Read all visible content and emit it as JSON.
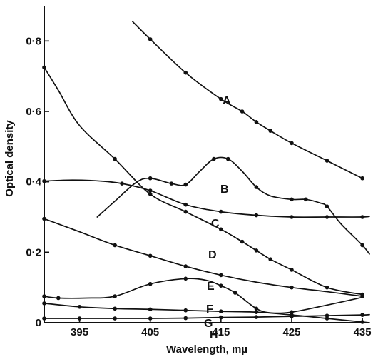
{
  "chart_data": {
    "type": "line",
    "title": "",
    "xlabel": "Wavelength, mµ",
    "ylabel": "Optical density",
    "xlim": [
      390,
      436
    ],
    "ylim": [
      0,
      0.9
    ],
    "x_ticks": [
      395,
      405,
      415,
      425,
      435
    ],
    "x_tick_labels": [
      "395",
      "405",
      "415",
      "425",
      "435"
    ],
    "y_ticks": [
      0,
      0.2,
      0.4,
      0.6,
      0.8
    ],
    "y_tick_labels": [
      "0",
      "0·2",
      "0·4",
      "0·6",
      "0·8"
    ],
    "grid": false,
    "legend": "labels placed on curves",
    "series": [
      {
        "name": "A",
        "x": [
          405,
          410,
          415,
          418,
          420,
          422,
          425,
          430,
          435
        ],
        "y": [
          0.805,
          0.71,
          0.635,
          0.6,
          0.57,
          0.545,
          0.51,
          0.46,
          0.41
        ],
        "line_x": [
          402.5,
          405,
          410,
          415,
          418,
          420,
          422,
          425,
          430,
          435
        ],
        "line_y": [
          0.855,
          0.805,
          0.71,
          0.635,
          0.6,
          0.57,
          0.545,
          0.51,
          0.46,
          0.41
        ]
      },
      {
        "name": "B",
        "x": [
          405,
          408,
          410,
          414,
          416,
          420,
          425,
          427,
          430,
          435
        ],
        "y": [
          0.41,
          0.395,
          0.392,
          0.465,
          0.465,
          0.385,
          0.35,
          0.35,
          0.33,
          0.22
        ],
        "line_x": [
          397.5,
          400,
          403,
          405,
          408,
          410,
          412,
          414,
          416,
          418,
          420,
          422,
          425,
          427,
          429,
          430,
          432,
          435,
          436
        ],
        "line_y": [
          0.3,
          0.345,
          0.398,
          0.41,
          0.395,
          0.392,
          0.43,
          0.465,
          0.465,
          0.43,
          0.385,
          0.36,
          0.35,
          0.35,
          0.34,
          0.33,
          0.28,
          0.22,
          0.195
        ]
      },
      {
        "name": "C",
        "x": [
          390,
          401,
          405,
          410,
          415,
          420,
          425,
          430,
          435
        ],
        "y": [
          0.402,
          0.395,
          0.375,
          0.335,
          0.315,
          0.305,
          0.3,
          0.3,
          0.3
        ],
        "line_x": [
          390,
          394,
          398,
          401,
          405,
          410,
          415,
          420,
          425,
          430,
          435,
          436
        ],
        "line_y": [
          0.402,
          0.405,
          0.402,
          0.395,
          0.375,
          0.335,
          0.315,
          0.305,
          0.3,
          0.3,
          0.3,
          0.302
        ]
      },
      {
        "name": "D",
        "x": [
          390,
          400,
          405,
          410,
          415,
          418,
          420,
          422,
          425,
          430,
          435
        ],
        "y": [
          0.725,
          0.465,
          0.365,
          0.315,
          0.265,
          0.23,
          0.205,
          0.18,
          0.15,
          0.1,
          0.08
        ],
        "line_x": [
          390,
          392,
          395,
          400,
          405,
          410,
          415,
          418,
          420,
          422,
          425,
          430,
          435
        ],
        "line_y": [
          0.725,
          0.66,
          0.56,
          0.465,
          0.365,
          0.315,
          0.265,
          0.23,
          0.205,
          0.18,
          0.15,
          0.1,
          0.08
        ]
      },
      {
        "name": "E",
        "x": [
          390,
          400,
          405,
          410,
          415,
          425,
          435
        ],
        "y": [
          0.295,
          0.22,
          0.19,
          0.16,
          0.135,
          0.1,
          0.075
        ],
        "line_x": [
          390,
          395,
          400,
          405,
          410,
          415,
          420,
          425,
          430,
          435
        ],
        "line_y": [
          0.295,
          0.258,
          0.22,
          0.19,
          0.16,
          0.135,
          0.115,
          0.1,
          0.088,
          0.075
        ]
      },
      {
        "name": "F",
        "x": [
          390,
          392,
          400,
          405,
          410,
          415,
          417,
          420,
          425
        ],
        "y": [
          0.075,
          0.07,
          0.075,
          0.11,
          0.125,
          0.105,
          0.085,
          0.04,
          0.03
        ],
        "line_x": [
          390,
          392,
          396,
          400,
          405,
          410,
          413,
          415,
          417,
          420,
          422,
          425,
          430,
          435
        ],
        "line_y": [
          0.075,
          0.07,
          0.07,
          0.075,
          0.11,
          0.125,
          0.12,
          0.105,
          0.085,
          0.04,
          0.028,
          0.03,
          0.05,
          0.072
        ]
      },
      {
        "name": "G",
        "x": [
          390,
          395,
          400,
          405,
          410,
          415,
          420,
          425,
          430,
          435
        ],
        "y": [
          0.055,
          0.045,
          0.04,
          0.038,
          0.035,
          0.032,
          0.03,
          0.022,
          0.012,
          0.002
        ],
        "line_x": [
          390,
          395,
          400,
          405,
          410,
          415,
          420,
          425,
          430,
          435,
          436
        ],
        "line_y": [
          0.055,
          0.045,
          0.04,
          0.038,
          0.035,
          0.032,
          0.03,
          0.022,
          0.012,
          0.002,
          0.0
        ]
      },
      {
        "name": "H",
        "x": [
          390,
          395,
          400,
          405,
          410,
          415,
          420,
          425,
          430,
          435
        ],
        "y": [
          0.012,
          0.012,
          0.012,
          0.012,
          0.013,
          0.015,
          0.016,
          0.018,
          0.02,
          0.022
        ],
        "line_x": [
          390,
          395,
          400,
          405,
          410,
          415,
          420,
          425,
          430,
          435,
          436
        ],
        "line_y": [
          0.012,
          0.012,
          0.012,
          0.012,
          0.013,
          0.015,
          0.016,
          0.018,
          0.02,
          0.022,
          0.023
        ]
      }
    ]
  }
}
